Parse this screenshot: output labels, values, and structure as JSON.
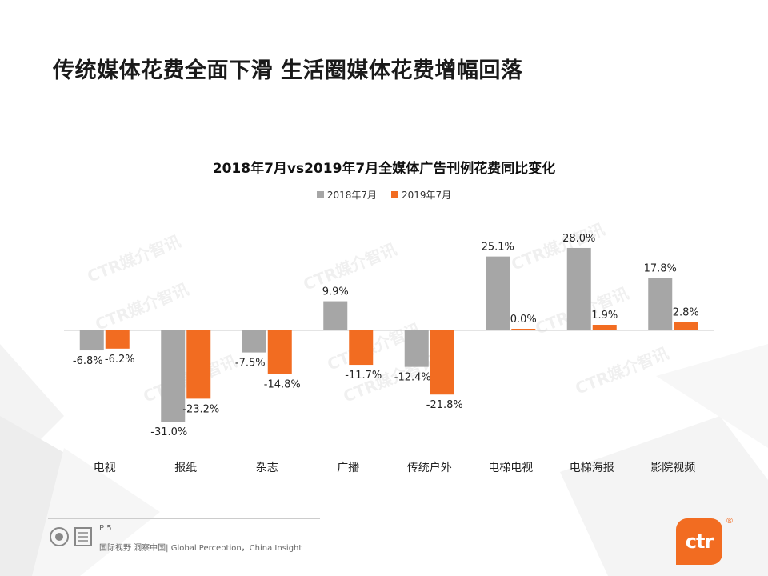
{
  "page": {
    "title": "传统媒体花费全面下滑 生活圈媒体花费增幅回落",
    "page_number": "P 5",
    "tagline": "国际视野 洞察中国| Global Perception，China Insight",
    "logo_text": "ctr",
    "logo_mark": "®",
    "watermark": "CTR媒介智讯"
  },
  "colors": {
    "series_2018": "#a6a6a6",
    "series_2019": "#f26c21",
    "accent": "#f26c21"
  },
  "chart_data": {
    "type": "bar",
    "title": "2018年7月vs2019年7月全媒体广告刊例花费同比变化",
    "categories": [
      "电视",
      "报纸",
      "杂志",
      "广播",
      "传统户外",
      "电梯电视",
      "电梯海报",
      "影院视频"
    ],
    "series": [
      {
        "name": "2018年7月",
        "values": [
          -6.8,
          -31.0,
          -7.5,
          9.9,
          -12.4,
          25.1,
          28.0,
          17.8
        ],
        "labels": [
          "-6.8%",
          "-31.0%",
          "-7.5%",
          "9.9%",
          "-12.4%",
          "25.1%",
          "28.0%",
          "17.8%"
        ]
      },
      {
        "name": "2019年7月",
        "values": [
          -6.2,
          -23.2,
          -14.8,
          -11.7,
          -21.8,
          0.0,
          1.9,
          2.8
        ],
        "labels": [
          "-6.2%",
          "-23.2%",
          "-14.8%",
          "-11.7%",
          "-21.8%",
          "0.0%",
          "1.9%",
          "2.8%"
        ]
      }
    ],
    "ylim": [
      -35,
      30
    ],
    "legend": "top-center",
    "grid": false
  }
}
